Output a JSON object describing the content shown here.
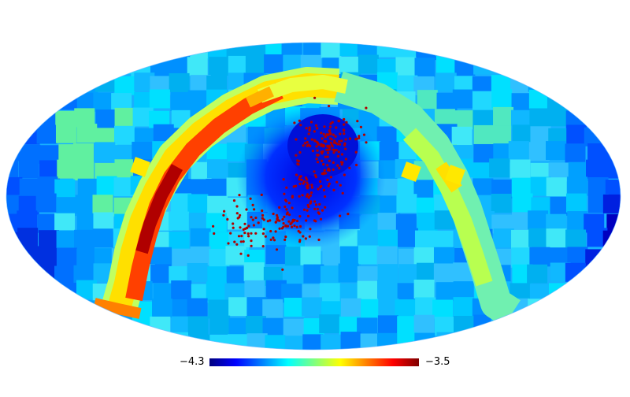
{
  "colormap": {
    "min_label": "−4.3",
    "max_label": "−3.5",
    "min": -4.3,
    "max": -3.5,
    "stops": [
      "#00007f",
      "#0000ff",
      "#007fff",
      "#00ffff",
      "#7fff7f",
      "#ffff00",
      "#ff7f00",
      "#ff0000",
      "#7f0000"
    ]
  },
  "map": {
    "projection": "mollweide",
    "background_color": "#1aa0ff",
    "band_colors": [
      "#ffff00",
      "#ffcf00",
      "#ff7f00",
      "#ff3000",
      "#bf0000",
      "#7f0000"
    ],
    "points_color": "#b00000"
  }
}
